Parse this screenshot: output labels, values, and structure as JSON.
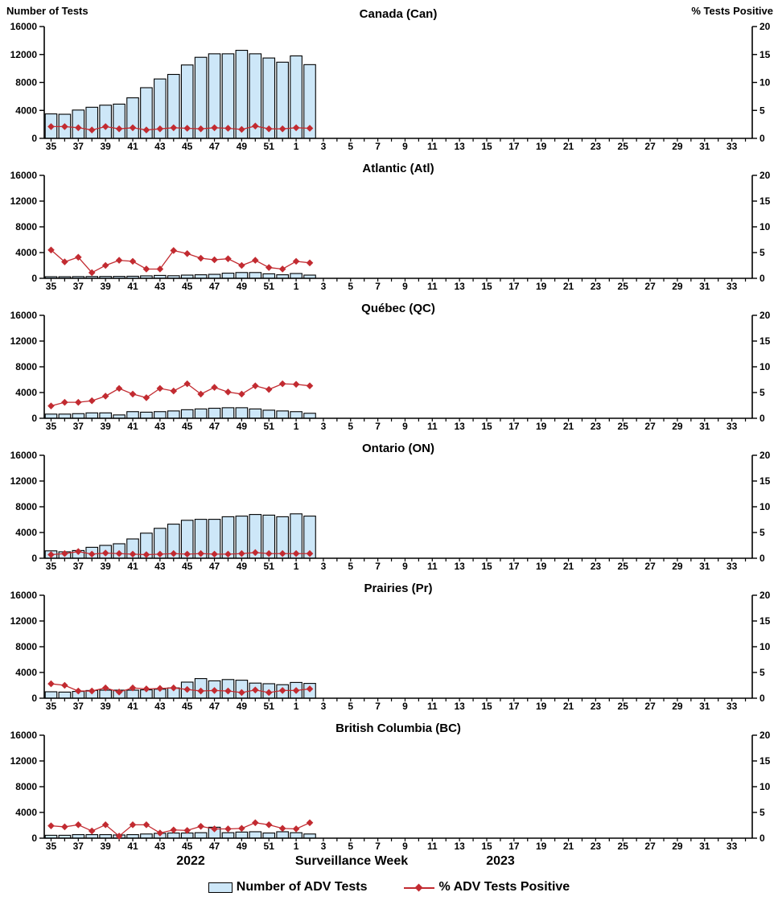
{
  "header": {
    "left_axis_title": "Number of Tests",
    "right_axis_title": "% Tests Positive"
  },
  "footer": {
    "year_left": "2022",
    "axis_label": "Surveillance Week",
    "year_right": "2023"
  },
  "legend": {
    "items": [
      {
        "label": "Number of ADV Tests",
        "swatch": "bar"
      },
      {
        "label": "% ADV Tests Positive",
        "swatch": "line"
      }
    ]
  },
  "colors": {
    "bar_fill": "#CDE7F8",
    "bar_stroke": "#000000",
    "line": "#C22B31",
    "axis": "#000000"
  },
  "axes": {
    "left_ticks": [
      0,
      4000,
      8000,
      12000,
      16000
    ],
    "right_ticks": [
      0,
      5,
      10,
      15,
      20
    ],
    "left_ylim": [
      0,
      16000
    ],
    "right_ylim": [
      0,
      20
    ],
    "weeks_all": [
      35,
      36,
      37,
      38,
      39,
      40,
      41,
      42,
      43,
      44,
      45,
      46,
      47,
      48,
      49,
      50,
      51,
      52,
      1,
      2,
      3,
      4,
      5,
      6,
      7,
      8,
      9,
      10,
      11,
      12,
      13,
      14,
      15,
      16,
      17,
      18,
      19,
      20,
      21,
      22,
      23,
      24,
      25,
      26,
      27,
      28,
      29,
      30,
      31,
      32,
      33,
      34
    ]
  },
  "chart_data": [
    {
      "type": "bar+line",
      "region": "Canada (Can)",
      "categories": [
        "35",
        "36",
        "37",
        "38",
        "39",
        "40",
        "41",
        "42",
        "43",
        "44",
        "45",
        "46",
        "47",
        "48",
        "49",
        "50",
        "51",
        "52",
        "1",
        "2"
      ],
      "series": [
        {
          "name": "Number of ADV Tests",
          "axis": "left",
          "values": [
            3500,
            3450,
            4050,
            4450,
            4750,
            4900,
            5800,
            7250,
            8500,
            9150,
            10500,
            11600,
            12100,
            12100,
            12600,
            12100,
            11500,
            10900,
            11800,
            10550
          ]
        },
        {
          "name": "% ADV Tests Positive",
          "axis": "right",
          "values": [
            2.1,
            2.1,
            1.9,
            1.5,
            2.1,
            1.7,
            1.9,
            1.5,
            1.7,
            1.9,
            1.8,
            1.7,
            1.9,
            1.8,
            1.6,
            2.2,
            1.7,
            1.7,
            1.9,
            1.8
          ]
        }
      ]
    },
    {
      "type": "bar+line",
      "region": "Atlantic (Atl)",
      "categories": [
        "35",
        "36",
        "37",
        "38",
        "39",
        "40",
        "41",
        "42",
        "43",
        "44",
        "45",
        "46",
        "47",
        "48",
        "49",
        "50",
        "51",
        "52",
        "1",
        "2"
      ],
      "series": [
        {
          "name": "Number of ADV Tests",
          "axis": "left",
          "values": [
            250,
            250,
            270,
            280,
            290,
            300,
            320,
            380,
            450,
            400,
            500,
            550,
            620,
            800,
            900,
            900,
            700,
            550,
            750,
            500
          ]
        },
        {
          "name": "% ADV Tests Positive",
          "axis": "right",
          "values": [
            5.5,
            3.2,
            4.1,
            1.1,
            2.5,
            3.5,
            3.3,
            1.8,
            1.8,
            5.4,
            4.8,
            3.9,
            3.6,
            3.8,
            2.5,
            3.5,
            2.1,
            1.8,
            3.3,
            3.0
          ]
        }
      ]
    },
    {
      "type": "bar+line",
      "region": "Québec (QC)",
      "categories": [
        "35",
        "36",
        "37",
        "38",
        "39",
        "40",
        "41",
        "42",
        "43",
        "44",
        "45",
        "46",
        "47",
        "48",
        "49",
        "50",
        "51",
        "52",
        "1",
        "2"
      ],
      "series": [
        {
          "name": "Number of ADV Tests",
          "axis": "left",
          "values": [
            650,
            650,
            720,
            840,
            840,
            520,
            1030,
            950,
            1030,
            1140,
            1330,
            1450,
            1560,
            1640,
            1640,
            1450,
            1260,
            1140,
            1030,
            780
          ]
        },
        {
          "name": "% ADV Tests Positive",
          "axis": "right",
          "values": [
            2.4,
            3.1,
            3.1,
            3.4,
            4.3,
            5.8,
            4.7,
            4.0,
            5.8,
            5.3,
            6.7,
            4.7,
            6.0,
            5.1,
            4.7,
            6.3,
            5.6,
            6.7,
            6.6,
            6.3
          ]
        }
      ]
    },
    {
      "type": "bar+line",
      "region": "Ontario (ON)",
      "categories": [
        "35",
        "36",
        "37",
        "38",
        "39",
        "40",
        "41",
        "42",
        "43",
        "44",
        "45",
        "46",
        "47",
        "48",
        "49",
        "50",
        "51",
        "52",
        "1",
        "2"
      ],
      "series": [
        {
          "name": "Number of ADV Tests",
          "axis": "left",
          "values": [
            1150,
            1000,
            1200,
            1700,
            2000,
            2250,
            3000,
            3900,
            4650,
            5300,
            5900,
            6050,
            6050,
            6450,
            6550,
            6800,
            6700,
            6450,
            6900,
            6550
          ]
        },
        {
          "name": "% ADV Tests Positive",
          "axis": "right",
          "values": [
            0.7,
            0.9,
            1.3,
            0.8,
            1.0,
            0.9,
            0.8,
            0.7,
            0.8,
            0.9,
            0.8,
            0.9,
            0.8,
            0.8,
            0.9,
            1.1,
            0.9,
            0.9,
            0.9,
            0.9
          ]
        }
      ]
    },
    {
      "type": "bar+line",
      "region": "Prairies (Pr)",
      "categories": [
        "35",
        "36",
        "37",
        "38",
        "39",
        "40",
        "41",
        "42",
        "43",
        "44",
        "45",
        "46",
        "47",
        "48",
        "49",
        "50",
        "51",
        "52",
        "1",
        "2"
      ],
      "series": [
        {
          "name": "Number of ADV Tests",
          "axis": "left",
          "values": [
            1000,
            950,
            1050,
            1200,
            1250,
            1250,
            1250,
            1300,
            1400,
            1600,
            2500,
            3050,
            2700,
            2900,
            2800,
            2350,
            2250,
            2100,
            2450,
            2300
          ]
        },
        {
          "name": "% ADV Tests Positive",
          "axis": "right",
          "values": [
            2.8,
            2.5,
            1.4,
            1.4,
            2.0,
            1.2,
            2.0,
            1.8,
            1.9,
            2.0,
            1.7,
            1.4,
            1.5,
            1.4,
            1.1,
            1.6,
            1.1,
            1.5,
            1.5,
            1.8
          ]
        }
      ]
    },
    {
      "type": "bar+line",
      "region": "British Columbia (BC)",
      "categories": [
        "35",
        "36",
        "37",
        "38",
        "39",
        "40",
        "41",
        "42",
        "43",
        "44",
        "45",
        "46",
        "47",
        "48",
        "49",
        "50",
        "51",
        "52",
        "1",
        "2"
      ],
      "series": [
        {
          "name": "Number of ADV Tests",
          "axis": "left",
          "values": [
            450,
            450,
            550,
            550,
            550,
            500,
            550,
            650,
            750,
            800,
            800,
            850,
            1700,
            850,
            950,
            1000,
            800,
            1000,
            850,
            650
          ]
        },
        {
          "name": "% ADV Tests Positive",
          "axis": "right",
          "values": [
            2.4,
            2.2,
            2.6,
            1.4,
            2.6,
            0.4,
            2.6,
            2.6,
            1.0,
            1.6,
            1.5,
            2.3,
            1.8,
            1.8,
            1.9,
            3.0,
            2.6,
            1.9,
            1.8,
            3.0
          ]
        }
      ]
    }
  ]
}
